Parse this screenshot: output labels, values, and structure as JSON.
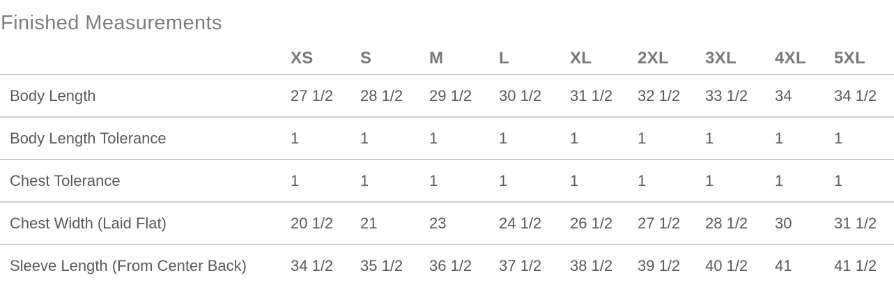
{
  "page": {
    "title": "Finished Measurements"
  },
  "chart_data": {
    "type": "table",
    "title": "Finished Measurements",
    "size_columns": [
      "XS",
      "S",
      "M",
      "L",
      "XL",
      "2XL",
      "3XL",
      "4XL",
      "5XL"
    ],
    "rows": [
      {
        "label": "Body Length",
        "values": [
          "27 1/2",
          "28 1/2",
          "29 1/2",
          "30 1/2",
          "31 1/2",
          "32 1/2",
          "33 1/2",
          "34",
          "34 1/2"
        ]
      },
      {
        "label": "Body Length Tolerance",
        "values": [
          "1",
          "1",
          "1",
          "1",
          "1",
          "1",
          "1",
          "1",
          "1"
        ]
      },
      {
        "label": "Chest Tolerance",
        "values": [
          "1",
          "1",
          "1",
          "1",
          "1",
          "1",
          "1",
          "1",
          "1"
        ]
      },
      {
        "label": "Chest Width (Laid Flat)",
        "values": [
          "20 1/2",
          "21",
          "23",
          "24 1/2",
          "26 1/2",
          "27 1/2",
          "28 1/2",
          "30",
          "31 1/2"
        ]
      },
      {
        "label": "Sleeve Length (From Center Back)",
        "values": [
          "34 1/2",
          "35 1/2",
          "36 1/2",
          "37 1/2",
          "38 1/2",
          "39 1/2",
          "40 1/2",
          "41",
          "41 1/2"
        ]
      }
    ],
    "layout": {
      "legend": "none",
      "grid": "horizontal-dividers-only",
      "header_position": "top"
    },
    "colors": {
      "title_text": "#7c7d7e",
      "header_text": "#77787b",
      "body_text": "#58595b",
      "divider": "#cbcbcb",
      "background": "#ffffff"
    }
  }
}
